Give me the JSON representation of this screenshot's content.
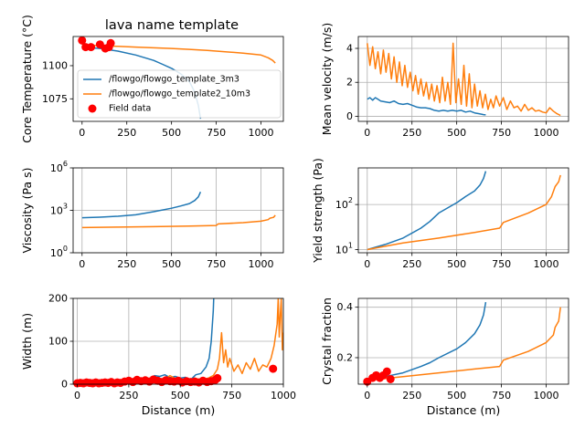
{
  "figure": {
    "title": "lava name template"
  },
  "colors": {
    "series1": "#1f77b4",
    "series2": "#ff7f0e",
    "field": "#ff0000",
    "grid": "#b0b0b0"
  },
  "legend": {
    "placement": "center-left",
    "entries": [
      "/flowgo/flowgo_template_3m3",
      "/flowgo/flowgo_template2_10m3",
      "Field data"
    ]
  },
  "chart_data": [
    {
      "type": "line",
      "id": "temperature",
      "title": "lava name template",
      "xlabel": "",
      "ylabel": "Core Temperature (°C)",
      "xlim": [
        -50,
        1125
      ],
      "ylim": [
        1058,
        1122
      ],
      "xticks": [
        0,
        250,
        500,
        750,
        1000
      ],
      "xticklabels": [
        "0",
        "250",
        "500",
        "750",
        "1000"
      ],
      "yticks": [
        1075,
        1100
      ],
      "yticklabels": [
        "1075",
        "1100"
      ],
      "grid": false,
      "series": [
        {
          "name": "/flowgo/flowgo_template_3m3",
          "color": "#1f77b4",
          "x": [
            0,
            100,
            200,
            300,
            400,
            450,
            500,
            550,
            600,
            630,
            650,
            662
          ],
          "y": [
            1114,
            1113,
            1111,
            1108,
            1104,
            1101,
            1098,
            1094,
            1088,
            1080,
            1070,
            1060
          ]
        },
        {
          "name": "/flowgo/flowgo_template2_10m3",
          "color": "#ff7f0e",
          "x": [
            0,
            100,
            200,
            300,
            400,
            500,
            600,
            700,
            800,
            900,
            1000,
            1040,
            1065,
            1080
          ],
          "y": [
            1116,
            1115,
            1114.6,
            1114,
            1113.5,
            1113,
            1112.3,
            1111.5,
            1110.5,
            1109.5,
            1108,
            1106,
            1104,
            1102
          ]
        },
        {
          "name": "Field data",
          "color": "#ff0000",
          "style": "markers",
          "x": [
            0,
            20,
            50,
            100,
            130,
            150,
            160
          ],
          "y": [
            1119,
            1114,
            1114,
            1116,
            1113,
            1114,
            1117
          ]
        }
      ]
    },
    {
      "type": "line",
      "id": "velocity",
      "xlabel": "",
      "ylabel": "Mean velocity (m/s)",
      "xlim": [
        -50,
        1125
      ],
      "ylim": [
        -0.3,
        4.7
      ],
      "xticks": [
        0,
        250,
        500,
        750,
        1000
      ],
      "xticklabels": [
        "0",
        "250",
        "500",
        "750",
        "1000"
      ],
      "yticks": [
        0,
        2,
        4
      ],
      "yticklabels": [
        "0",
        "2",
        "4"
      ],
      "grid": true,
      "series": [
        {
          "name": "/flowgo/flowgo_template_3m3",
          "color": "#1f77b4",
          "x": [
            0,
            15,
            30,
            45,
            60,
            75,
            100,
            125,
            150,
            175,
            200,
            225,
            250,
            275,
            300,
            325,
            350,
            375,
            400,
            425,
            450,
            475,
            500,
            525,
            550,
            575,
            600,
            625,
            650,
            662
          ],
          "y": [
            1.0,
            1.1,
            0.95,
            1.1,
            1.0,
            0.9,
            0.85,
            0.8,
            0.9,
            0.75,
            0.7,
            0.75,
            0.65,
            0.55,
            0.5,
            0.5,
            0.45,
            0.35,
            0.3,
            0.35,
            0.3,
            0.35,
            0.3,
            0.35,
            0.25,
            0.3,
            0.2,
            0.15,
            0.1,
            0.08
          ]
        },
        {
          "name": "/flowgo/flowgo_template2_10m3",
          "color": "#ff7f0e",
          "x": [
            0,
            15,
            30,
            45,
            60,
            75,
            90,
            105,
            120,
            135,
            150,
            165,
            180,
            195,
            210,
            225,
            240,
            255,
            270,
            285,
            300,
            315,
            330,
            345,
            360,
            375,
            390,
            405,
            420,
            435,
            450,
            465,
            480,
            495,
            510,
            525,
            540,
            555,
            570,
            585,
            600,
            615,
            630,
            645,
            660,
            675,
            690,
            705,
            720,
            740,
            760,
            780,
            800,
            820,
            840,
            860,
            880,
            900,
            920,
            940,
            960,
            980,
            1000,
            1020,
            1040,
            1060,
            1080
          ],
          "y": [
            4.3,
            3.0,
            4.1,
            2.8,
            3.8,
            2.5,
            3.9,
            2.6,
            3.7,
            2.2,
            3.5,
            2.0,
            3.2,
            1.8,
            3.0,
            1.7,
            2.6,
            1.5,
            2.4,
            1.3,
            2.2,
            1.2,
            2.0,
            1.0,
            1.9,
            0.9,
            1.8,
            0.8,
            2.3,
            0.9,
            2.0,
            0.7,
            4.3,
            0.8,
            2.2,
            0.7,
            3.0,
            0.6,
            2.5,
            0.5,
            1.9,
            0.6,
            1.5,
            0.5,
            1.3,
            0.4,
            1.0,
            0.5,
            1.2,
            0.6,
            1.1,
            0.4,
            0.9,
            0.5,
            0.6,
            0.3,
            0.7,
            0.35,
            0.5,
            0.3,
            0.35,
            0.25,
            0.2,
            0.5,
            0.3,
            0.15,
            0.05
          ]
        }
      ]
    },
    {
      "type": "line",
      "id": "viscosity",
      "xlabel": "",
      "ylabel": "Viscosity (Pa s)",
      "xscale": "linear",
      "yscale": "log",
      "xlim": [
        -50,
        1125
      ],
      "ylim": [
        1,
        1000000
      ],
      "xticks": [
        0,
        250,
        500,
        750,
        1000
      ],
      "xticklabels": [
        "0",
        "250",
        "500",
        "750",
        "1000"
      ],
      "yticks": [
        1,
        1000,
        1000000
      ],
      "yticklabels": [
        "10^0",
        "10^3",
        "10^6"
      ],
      "grid": true,
      "series": [
        {
          "name": "/flowgo/flowgo_template_3m3",
          "color": "#1f77b4",
          "x": [
            0,
            100,
            200,
            300,
            400,
            500,
            550,
            600,
            630,
            650,
            662
          ],
          "y": [
            300,
            330,
            380,
            480,
            800,
            1400,
            2000,
            3000,
            5000,
            9000,
            20000
          ]
        },
        {
          "name": "/flowgo/flowgo_template2_10m3",
          "color": "#ff7f0e",
          "x": [
            0,
            200,
            400,
            600,
            750,
            760,
            900,
            1000,
            1040,
            1050,
            1070,
            1080
          ],
          "y": [
            60,
            65,
            70,
            78,
            85,
            110,
            135,
            170,
            220,
            280,
            320,
            450
          ]
        }
      ]
    },
    {
      "type": "line",
      "id": "yield",
      "xlabel": "",
      "ylabel": "Yield strength (Pa)",
      "xscale": "linear",
      "yscale": "log",
      "xlim": [
        -50,
        1125
      ],
      "ylim": [
        8.5,
        650
      ],
      "xticks": [
        0,
        250,
        500,
        750,
        1000
      ],
      "xticklabels": [
        "0",
        "250",
        "500",
        "750",
        "1000"
      ],
      "yticks": [
        10,
        100
      ],
      "yticklabels": [
        "10^1",
        "10^2"
      ],
      "grid": true,
      "series": [
        {
          "name": "/flowgo/flowgo_template_3m3",
          "color": "#1f77b4",
          "x": [
            0,
            100,
            200,
            300,
            350,
            400,
            500,
            550,
            600,
            630,
            650,
            662
          ],
          "y": [
            10,
            13,
            18,
            30,
            42,
            65,
            110,
            150,
            200,
            270,
            380,
            550
          ]
        },
        {
          "name": "/flowgo/flowgo_template2_10m3",
          "color": "#ff7f0e",
          "x": [
            0,
            200,
            400,
            600,
            740,
            760,
            900,
            1000,
            1030,
            1050,
            1070,
            1080
          ],
          "y": [
            10,
            14,
            18,
            24,
            30,
            40,
            65,
            100,
            150,
            250,
            320,
            450
          ]
        }
      ]
    },
    {
      "type": "line",
      "id": "width",
      "xlabel": "Distance (m)",
      "ylabel": "Width (m)",
      "xlim": [
        -20,
        1000
      ],
      "ylim": [
        0,
        200
      ],
      "xticks": [
        0,
        250,
        500,
        750,
        1000
      ],
      "xticklabels": [
        "0",
        "250",
        "500",
        "750",
        "1000"
      ],
      "yticks": [
        0,
        100,
        200
      ],
      "yticklabels": [
        "0",
        "100",
        "200"
      ],
      "grid": true,
      "series": [
        {
          "name": "/flowgo/flowgo_template_3m3",
          "color": "#1f77b4",
          "x": [
            0,
            100,
            200,
            250,
            300,
            325,
            350,
            375,
            400,
            425,
            450,
            475,
            500,
            525,
            550,
            575,
            600,
            625,
            640,
            650,
            660,
            662
          ],
          "y": [
            5,
            5,
            8,
            7,
            10,
            15,
            12,
            20,
            18,
            22,
            15,
            18,
            14,
            16,
            10,
            22,
            25,
            40,
            60,
            100,
            170,
            200
          ]
        },
        {
          "name": "/flowgo/flowgo_template2_10m3",
          "color": "#ff7f0e",
          "x": [
            0,
            50,
            100,
            150,
            200,
            250,
            300,
            330,
            360,
            390,
            420,
            450,
            480,
            510,
            540,
            570,
            600,
            620,
            640,
            660,
            680,
            690,
            700,
            710,
            720,
            730,
            740,
            760,
            780,
            800,
            820,
            840,
            860,
            880,
            900,
            920,
            940,
            955,
            970,
            975,
            980,
            985,
            990,
            995,
            1000
          ],
          "y": [
            4,
            4,
            5,
            5,
            6,
            6,
            8,
            12,
            8,
            15,
            10,
            20,
            12,
            10,
            8,
            14,
            10,
            12,
            15,
            20,
            35,
            60,
            120,
            50,
            80,
            40,
            60,
            30,
            45,
            25,
            50,
            35,
            60,
            30,
            45,
            40,
            60,
            90,
            140,
            200,
            110,
            160,
            200,
            80,
            120
          ]
        },
        {
          "name": "Field data",
          "color": "#ff0000",
          "style": "markers",
          "x": [
            0,
            15,
            30,
            45,
            60,
            75,
            90,
            105,
            120,
            135,
            150,
            165,
            180,
            195,
            210,
            230,
            250,
            270,
            290,
            310,
            330,
            350,
            370,
            390,
            410,
            430,
            450,
            470,
            490,
            510,
            530,
            550,
            570,
            590,
            610,
            630,
            650,
            670,
            680,
            950
          ],
          "y": [
            2,
            3,
            2,
            4,
            3,
            2,
            4,
            2,
            3,
            4,
            3,
            5,
            2,
            4,
            3,
            6,
            8,
            5,
            10,
            7,
            9,
            6,
            11,
            8,
            5,
            9,
            7,
            6,
            8,
            4,
            7,
            5,
            6,
            4,
            8,
            5,
            7,
            10,
            14,
            36
          ]
        }
      ]
    },
    {
      "type": "line",
      "id": "crystal",
      "xlabel": "Distance (m)",
      "ylabel": "Crystal fraction",
      "xlim": [
        -50,
        1125
      ],
      "ylim": [
        0.095,
        0.435
      ],
      "xticks": [
        0,
        250,
        500,
        750,
        1000
      ],
      "xticklabels": [
        "0",
        "250",
        "500",
        "750",
        "1000"
      ],
      "yticks": [
        0.2,
        0.4
      ],
      "yticklabels": [
        "0.2",
        "0.4"
      ],
      "grid": true,
      "series": [
        {
          "name": "/flowgo/flowgo_template_3m3",
          "color": "#1f77b4",
          "x": [
            0,
            100,
            200,
            300,
            350,
            400,
            500,
            550,
            600,
            630,
            650,
            662
          ],
          "y": [
            0.11,
            0.125,
            0.14,
            0.165,
            0.18,
            0.2,
            0.235,
            0.26,
            0.295,
            0.33,
            0.37,
            0.42
          ]
        },
        {
          "name": "/flowgo/flowgo_template2_10m3",
          "color": "#ff7f0e",
          "x": [
            0,
            200,
            400,
            600,
            740,
            760,
            900,
            1000,
            1040,
            1050,
            1070,
            1080
          ],
          "y": [
            0.11,
            0.125,
            0.14,
            0.155,
            0.165,
            0.19,
            0.225,
            0.26,
            0.29,
            0.32,
            0.345,
            0.4
          ]
        },
        {
          "name": "Field data",
          "color": "#ff0000",
          "style": "markers",
          "x": [
            0,
            30,
            50,
            70,
            90,
            110,
            130
          ],
          "y": [
            0.105,
            0.12,
            0.13,
            0.12,
            0.13,
            0.145,
            0.115
          ]
        }
      ]
    }
  ]
}
